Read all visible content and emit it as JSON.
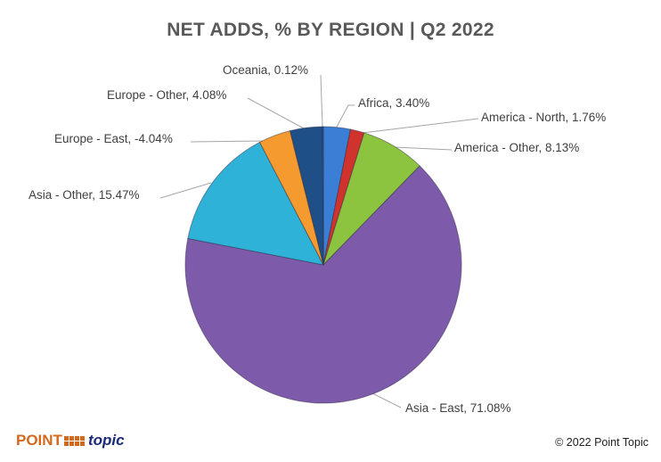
{
  "chart_data": {
    "type": "pie",
    "title": "NET ADDS, % BY REGION | Q2 2022",
    "slices": [
      {
        "label": "Africa",
        "value": 3.4,
        "text": "Africa, 3.40%",
        "color": "#3a7fd5"
      },
      {
        "label": "America - North",
        "value": 1.76,
        "text": "America - North, 1.76%",
        "color": "#d0322e"
      },
      {
        "label": "America - Other",
        "value": 8.13,
        "text": "America - Other, 8.13%",
        "color": "#8cc43f"
      },
      {
        "label": "Asia - East",
        "value": 71.08,
        "text": "Asia - East, 71.08%",
        "color": "#7e5aab"
      },
      {
        "label": "Asia - Other",
        "value": 15.47,
        "text": "Asia - Other, 15.47%",
        "color": "#2eb2d8"
      },
      {
        "label": "Europe - East",
        "value": -4.04,
        "text": "Europe - East, -4.04%",
        "color": "#f59a2e"
      },
      {
        "label": "Europe - Other",
        "value": 4.08,
        "text": "Europe - Other, 4.08%",
        "color": "#1f4f87"
      },
      {
        "label": "Oceania",
        "value": 0.12,
        "text": "Oceania, 0.12%",
        "color": "#2a5ea8"
      }
    ]
  },
  "footer": {
    "brand_point": "POINT",
    "brand_topic": "topic",
    "copyright": "© 2022 Point Topic"
  }
}
